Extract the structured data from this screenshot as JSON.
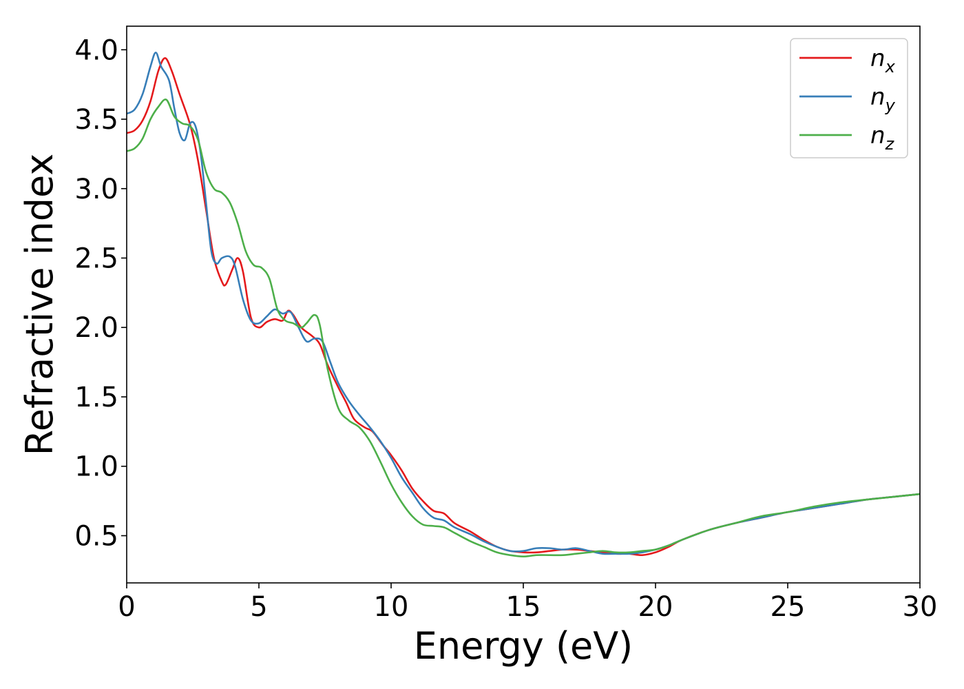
{
  "chart_data": {
    "type": "line",
    "title": "",
    "xlabel": "Energy (eV)",
    "ylabel": "Refractive index",
    "xlim": [
      0,
      30
    ],
    "ylim": [
      0.16,
      4.17
    ],
    "xticks": [
      0,
      5,
      10,
      15,
      20,
      25,
      30
    ],
    "xtick_labels": [
      "0",
      "5",
      "10",
      "15",
      "20",
      "25",
      "30"
    ],
    "yticks": [
      0.5,
      1.0,
      1.5,
      2.0,
      2.5,
      3.0,
      3.5,
      4.0
    ],
    "ytick_labels": [
      "0.5",
      "1.0",
      "1.5",
      "2.0",
      "2.5",
      "3.0",
      "3.5",
      "4.0"
    ],
    "grid": false,
    "legend_position": "top-right",
    "series": [
      {
        "name": "n",
        "subscript": "x",
        "color": "#e41a1c",
        "points": [
          [
            0,
            3.4
          ],
          [
            0.3,
            3.42
          ],
          [
            0.6,
            3.49
          ],
          [
            0.9,
            3.63
          ],
          [
            1.2,
            3.85
          ],
          [
            1.45,
            3.94
          ],
          [
            1.7,
            3.85
          ],
          [
            2.0,
            3.68
          ],
          [
            2.4,
            3.46
          ],
          [
            2.7,
            3.2
          ],
          [
            3.0,
            2.85
          ],
          [
            3.3,
            2.5
          ],
          [
            3.6,
            2.33
          ],
          [
            3.75,
            2.31
          ],
          [
            4.0,
            2.42
          ],
          [
            4.2,
            2.5
          ],
          [
            4.4,
            2.4
          ],
          [
            4.7,
            2.07
          ],
          [
            5.0,
            2.0
          ],
          [
            5.3,
            2.04
          ],
          [
            5.6,
            2.06
          ],
          [
            5.9,
            2.05
          ],
          [
            6.1,
            2.12
          ],
          [
            6.3,
            2.09
          ],
          [
            6.6,
            2.0
          ],
          [
            7.0,
            1.94
          ],
          [
            7.3,
            1.88
          ],
          [
            7.6,
            1.73
          ],
          [
            8.0,
            1.57
          ],
          [
            8.3,
            1.46
          ],
          [
            8.6,
            1.34
          ],
          [
            9.0,
            1.28
          ],
          [
            9.3,
            1.25
          ],
          [
            9.7,
            1.15
          ],
          [
            10.0,
            1.08
          ],
          [
            10.4,
            0.97
          ],
          [
            10.8,
            0.84
          ],
          [
            11.2,
            0.75
          ],
          [
            11.6,
            0.68
          ],
          [
            12.0,
            0.66
          ],
          [
            12.4,
            0.59
          ],
          [
            13.0,
            0.53
          ],
          [
            13.5,
            0.47
          ],
          [
            14.0,
            0.42
          ],
          [
            14.5,
            0.39
          ],
          [
            15.0,
            0.38
          ],
          [
            15.5,
            0.38
          ],
          [
            16.0,
            0.39
          ],
          [
            16.5,
            0.4
          ],
          [
            17.0,
            0.4
          ],
          [
            17.5,
            0.39
          ],
          [
            18.0,
            0.38
          ],
          [
            18.5,
            0.37
          ],
          [
            19.0,
            0.37
          ],
          [
            19.5,
            0.36
          ],
          [
            20.0,
            0.38
          ],
          [
            20.5,
            0.42
          ],
          [
            21.0,
            0.47
          ],
          [
            22.0,
            0.54
          ],
          [
            23.0,
            0.59
          ],
          [
            24.0,
            0.63
          ],
          [
            25.0,
            0.67
          ],
          [
            26.0,
            0.7
          ],
          [
            27.0,
            0.73
          ],
          [
            28.0,
            0.76
          ],
          [
            29.0,
            0.78
          ],
          [
            30.0,
            0.8
          ]
        ]
      },
      {
        "name": "n",
        "subscript": "y",
        "color": "#377eb8",
        "points": [
          [
            0,
            3.54
          ],
          [
            0.3,
            3.57
          ],
          [
            0.6,
            3.68
          ],
          [
            0.9,
            3.88
          ],
          [
            1.1,
            3.98
          ],
          [
            1.3,
            3.88
          ],
          [
            1.6,
            3.78
          ],
          [
            1.8,
            3.58
          ],
          [
            2.0,
            3.4
          ],
          [
            2.2,
            3.35
          ],
          [
            2.4,
            3.47
          ],
          [
            2.6,
            3.45
          ],
          [
            2.8,
            3.25
          ],
          [
            3.0,
            2.9
          ],
          [
            3.2,
            2.55
          ],
          [
            3.4,
            2.46
          ],
          [
            3.6,
            2.5
          ],
          [
            3.9,
            2.51
          ],
          [
            4.1,
            2.44
          ],
          [
            4.4,
            2.2
          ],
          [
            4.7,
            2.05
          ],
          [
            5.0,
            2.03
          ],
          [
            5.3,
            2.08
          ],
          [
            5.6,
            2.13
          ],
          [
            5.9,
            2.1
          ],
          [
            6.2,
            2.11
          ],
          [
            6.5,
            2.0
          ],
          [
            6.8,
            1.9
          ],
          [
            7.1,
            1.92
          ],
          [
            7.4,
            1.9
          ],
          [
            7.7,
            1.75
          ],
          [
            8.0,
            1.6
          ],
          [
            8.4,
            1.47
          ],
          [
            8.8,
            1.37
          ],
          [
            9.2,
            1.28
          ],
          [
            9.6,
            1.18
          ],
          [
            10.0,
            1.06
          ],
          [
            10.4,
            0.92
          ],
          [
            10.8,
            0.81
          ],
          [
            11.2,
            0.7
          ],
          [
            11.6,
            0.63
          ],
          [
            12.0,
            0.61
          ],
          [
            12.4,
            0.56
          ],
          [
            13.0,
            0.51
          ],
          [
            13.5,
            0.46
          ],
          [
            14.0,
            0.42
          ],
          [
            14.5,
            0.39
          ],
          [
            15.0,
            0.39
          ],
          [
            15.5,
            0.41
          ],
          [
            16.0,
            0.41
          ],
          [
            16.5,
            0.4
          ],
          [
            17.0,
            0.41
          ],
          [
            17.5,
            0.39
          ],
          [
            18.0,
            0.37
          ],
          [
            18.5,
            0.37
          ],
          [
            19.0,
            0.37
          ],
          [
            19.5,
            0.38
          ],
          [
            20.0,
            0.4
          ],
          [
            20.5,
            0.43
          ],
          [
            21.0,
            0.47
          ],
          [
            22.0,
            0.54
          ],
          [
            23.0,
            0.59
          ],
          [
            24.0,
            0.63
          ],
          [
            25.0,
            0.67
          ],
          [
            26.0,
            0.7
          ],
          [
            27.0,
            0.73
          ],
          [
            28.0,
            0.76
          ],
          [
            29.0,
            0.78
          ],
          [
            30.0,
            0.8
          ]
        ]
      },
      {
        "name": "n",
        "subscript": "z",
        "color": "#4daf4a",
        "points": [
          [
            0,
            3.27
          ],
          [
            0.3,
            3.29
          ],
          [
            0.6,
            3.36
          ],
          [
            0.9,
            3.5
          ],
          [
            1.2,
            3.59
          ],
          [
            1.5,
            3.64
          ],
          [
            1.8,
            3.52
          ],
          [
            2.1,
            3.47
          ],
          [
            2.4,
            3.45
          ],
          [
            2.7,
            3.35
          ],
          [
            3.0,
            3.12
          ],
          [
            3.3,
            3.0
          ],
          [
            3.6,
            2.97
          ],
          [
            3.9,
            2.9
          ],
          [
            4.2,
            2.75
          ],
          [
            4.5,
            2.55
          ],
          [
            4.8,
            2.45
          ],
          [
            5.1,
            2.43
          ],
          [
            5.4,
            2.35
          ],
          [
            5.7,
            2.13
          ],
          [
            6.0,
            2.05
          ],
          [
            6.3,
            2.03
          ],
          [
            6.6,
            2.0
          ],
          [
            6.8,
            2.03
          ],
          [
            7.1,
            2.09
          ],
          [
            7.3,
            2.02
          ],
          [
            7.6,
            1.7
          ],
          [
            8.0,
            1.42
          ],
          [
            8.4,
            1.33
          ],
          [
            8.8,
            1.28
          ],
          [
            9.2,
            1.18
          ],
          [
            9.6,
            1.03
          ],
          [
            10.0,
            0.87
          ],
          [
            10.4,
            0.74
          ],
          [
            10.8,
            0.64
          ],
          [
            11.2,
            0.58
          ],
          [
            11.6,
            0.57
          ],
          [
            12.0,
            0.56
          ],
          [
            12.4,
            0.52
          ],
          [
            13.0,
            0.46
          ],
          [
            13.5,
            0.42
          ],
          [
            14.0,
            0.38
          ],
          [
            14.5,
            0.36
          ],
          [
            15.0,
            0.35
          ],
          [
            15.5,
            0.36
          ],
          [
            16.0,
            0.36
          ],
          [
            16.5,
            0.36
          ],
          [
            17.0,
            0.37
          ],
          [
            17.5,
            0.38
          ],
          [
            18.0,
            0.39
          ],
          [
            18.5,
            0.38
          ],
          [
            19.0,
            0.38
          ],
          [
            19.5,
            0.39
          ],
          [
            20.0,
            0.4
          ],
          [
            20.5,
            0.43
          ],
          [
            21.0,
            0.47
          ],
          [
            22.0,
            0.54
          ],
          [
            23.0,
            0.59
          ],
          [
            24.0,
            0.64
          ],
          [
            25.0,
            0.67
          ],
          [
            26.0,
            0.71
          ],
          [
            27.0,
            0.74
          ],
          [
            28.0,
            0.76
          ],
          [
            29.0,
            0.78
          ],
          [
            30.0,
            0.8
          ]
        ]
      }
    ]
  }
}
